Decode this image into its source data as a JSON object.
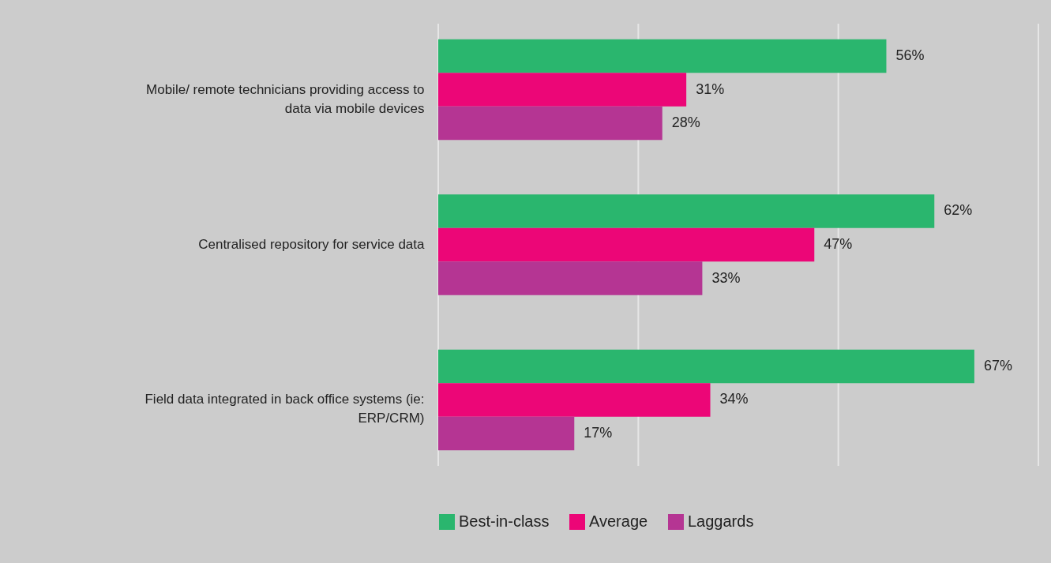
{
  "chart_data": {
    "type": "bar",
    "orientation": "horizontal",
    "categories": [
      "Mobile/ remote technicians providing access to data via mobile devices",
      "Centralised repository for service data",
      "Field data integrated in back office systems (ie: ERP/CRM)"
    ],
    "series": [
      {
        "name": "Best-in-class",
        "color": "#2ab66e",
        "values": [
          56,
          62,
          67
        ],
        "value_labels": [
          "56%",
          "62%",
          "67%"
        ]
      },
      {
        "name": "Average",
        "color": "#ec0677",
        "values": [
          31,
          47,
          34
        ],
        "value_labels": [
          "31%",
          "47%",
          "34%"
        ]
      },
      {
        "name": "Laggards",
        "color": "#b53593",
        "values": [
          28,
          33,
          17
        ],
        "value_labels": [
          "28%",
          "33%",
          "17%"
        ]
      }
    ],
    "ref_lines": [
      {
        "axis": "x",
        "value": 0,
        "color": "#e6e6e6"
      },
      {
        "axis": "x",
        "value": 25,
        "color": "#e6e6e6"
      },
      {
        "axis": "x",
        "value": 50,
        "color": "#e6e6e6"
      },
      {
        "axis": "x",
        "value": 75,
        "color": "#e6e6e6"
      }
    ],
    "legend": "bottom"
  }
}
